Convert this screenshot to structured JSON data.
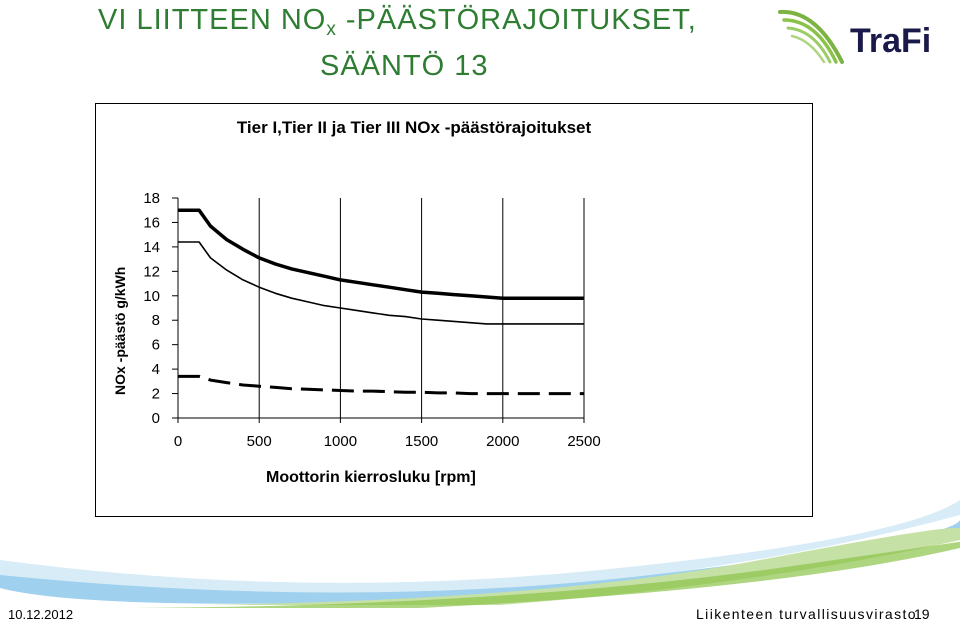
{
  "slide": {
    "title_main": "VI LIITTEEN NO",
    "title_sub": "x",
    "title_rest": " -PÄÄSTÖRAJOITUKSET,",
    "title_line2": "SÄÄNTÖ 13",
    "logo_text": "TraFi",
    "footer_date": "10.12.2012",
    "footer_org": "Liikenteen turvallisuusvirasto",
    "footer_page": "19"
  },
  "colors": {
    "title": "#2e7d32",
    "logo_dark": "#1a1a4a",
    "accent_green": "#7cb342",
    "accent_blue": "#4fa3d9"
  },
  "chart_data": {
    "type": "line",
    "title": "Tier I,Tier II ja Tier III NOx -päästörajoitukset",
    "xlabel": "Moottorin kierrosluku [rpm]",
    "ylabel": "NOx -päästö g/kWh",
    "xlim": [
      0,
      2500
    ],
    "ylim": [
      0,
      18
    ],
    "x_ticks": [
      "0",
      "500",
      "1000",
      "1500",
      "2000",
      "2500"
    ],
    "y_ticks": [
      "0",
      "2",
      "4",
      "6",
      "8",
      "10",
      "12",
      "14",
      "16",
      "18"
    ],
    "grid": "vertical",
    "legend": "none",
    "series": [
      {
        "style": "thick-solid",
        "x": [
          0,
          130,
          200,
          300,
          400,
          500,
          600,
          700,
          800,
          900,
          1000,
          1100,
          1200,
          1300,
          1400,
          1500,
          1600,
          1700,
          1800,
          1900,
          2000,
          2100,
          2200,
          2300,
          2400,
          2500
        ],
        "values": [
          17.0,
          17.0,
          15.7,
          14.6,
          13.8,
          13.1,
          12.6,
          12.2,
          11.9,
          11.6,
          11.3,
          11.1,
          10.9,
          10.7,
          10.5,
          10.3,
          10.2,
          10.1,
          10.0,
          9.9,
          9.8,
          9.8,
          9.8,
          9.8,
          9.8,
          9.8
        ]
      },
      {
        "style": "thin-solid",
        "x": [
          0,
          130,
          200,
          300,
          400,
          500,
          600,
          700,
          800,
          900,
          1000,
          1100,
          1200,
          1300,
          1400,
          1500,
          1600,
          1700,
          1800,
          1900,
          2000,
          2100,
          2200,
          2300,
          2400,
          2500
        ],
        "values": [
          14.4,
          14.4,
          13.1,
          12.1,
          11.3,
          10.7,
          10.2,
          9.8,
          9.5,
          9.2,
          9.0,
          8.8,
          8.6,
          8.4,
          8.3,
          8.1,
          8.0,
          7.9,
          7.8,
          7.7,
          7.7,
          7.7,
          7.7,
          7.7,
          7.7,
          7.7
        ]
      },
      {
        "style": "thick-dashed",
        "x": [
          0,
          130,
          200,
          300,
          400,
          500,
          600,
          700,
          800,
          900,
          1000,
          1100,
          1200,
          1300,
          1400,
          1500,
          1600,
          1700,
          1800,
          1900,
          2000,
          2100,
          2200,
          2300,
          2400,
          2500
        ],
        "values": [
          3.4,
          3.4,
          3.1,
          2.9,
          2.7,
          2.6,
          2.5,
          2.4,
          2.35,
          2.3,
          2.25,
          2.2,
          2.2,
          2.15,
          2.1,
          2.1,
          2.05,
          2.05,
          2.0,
          2.0,
          2.0,
          2.0,
          2.0,
          2.0,
          2.0,
          2.0
        ]
      }
    ]
  }
}
